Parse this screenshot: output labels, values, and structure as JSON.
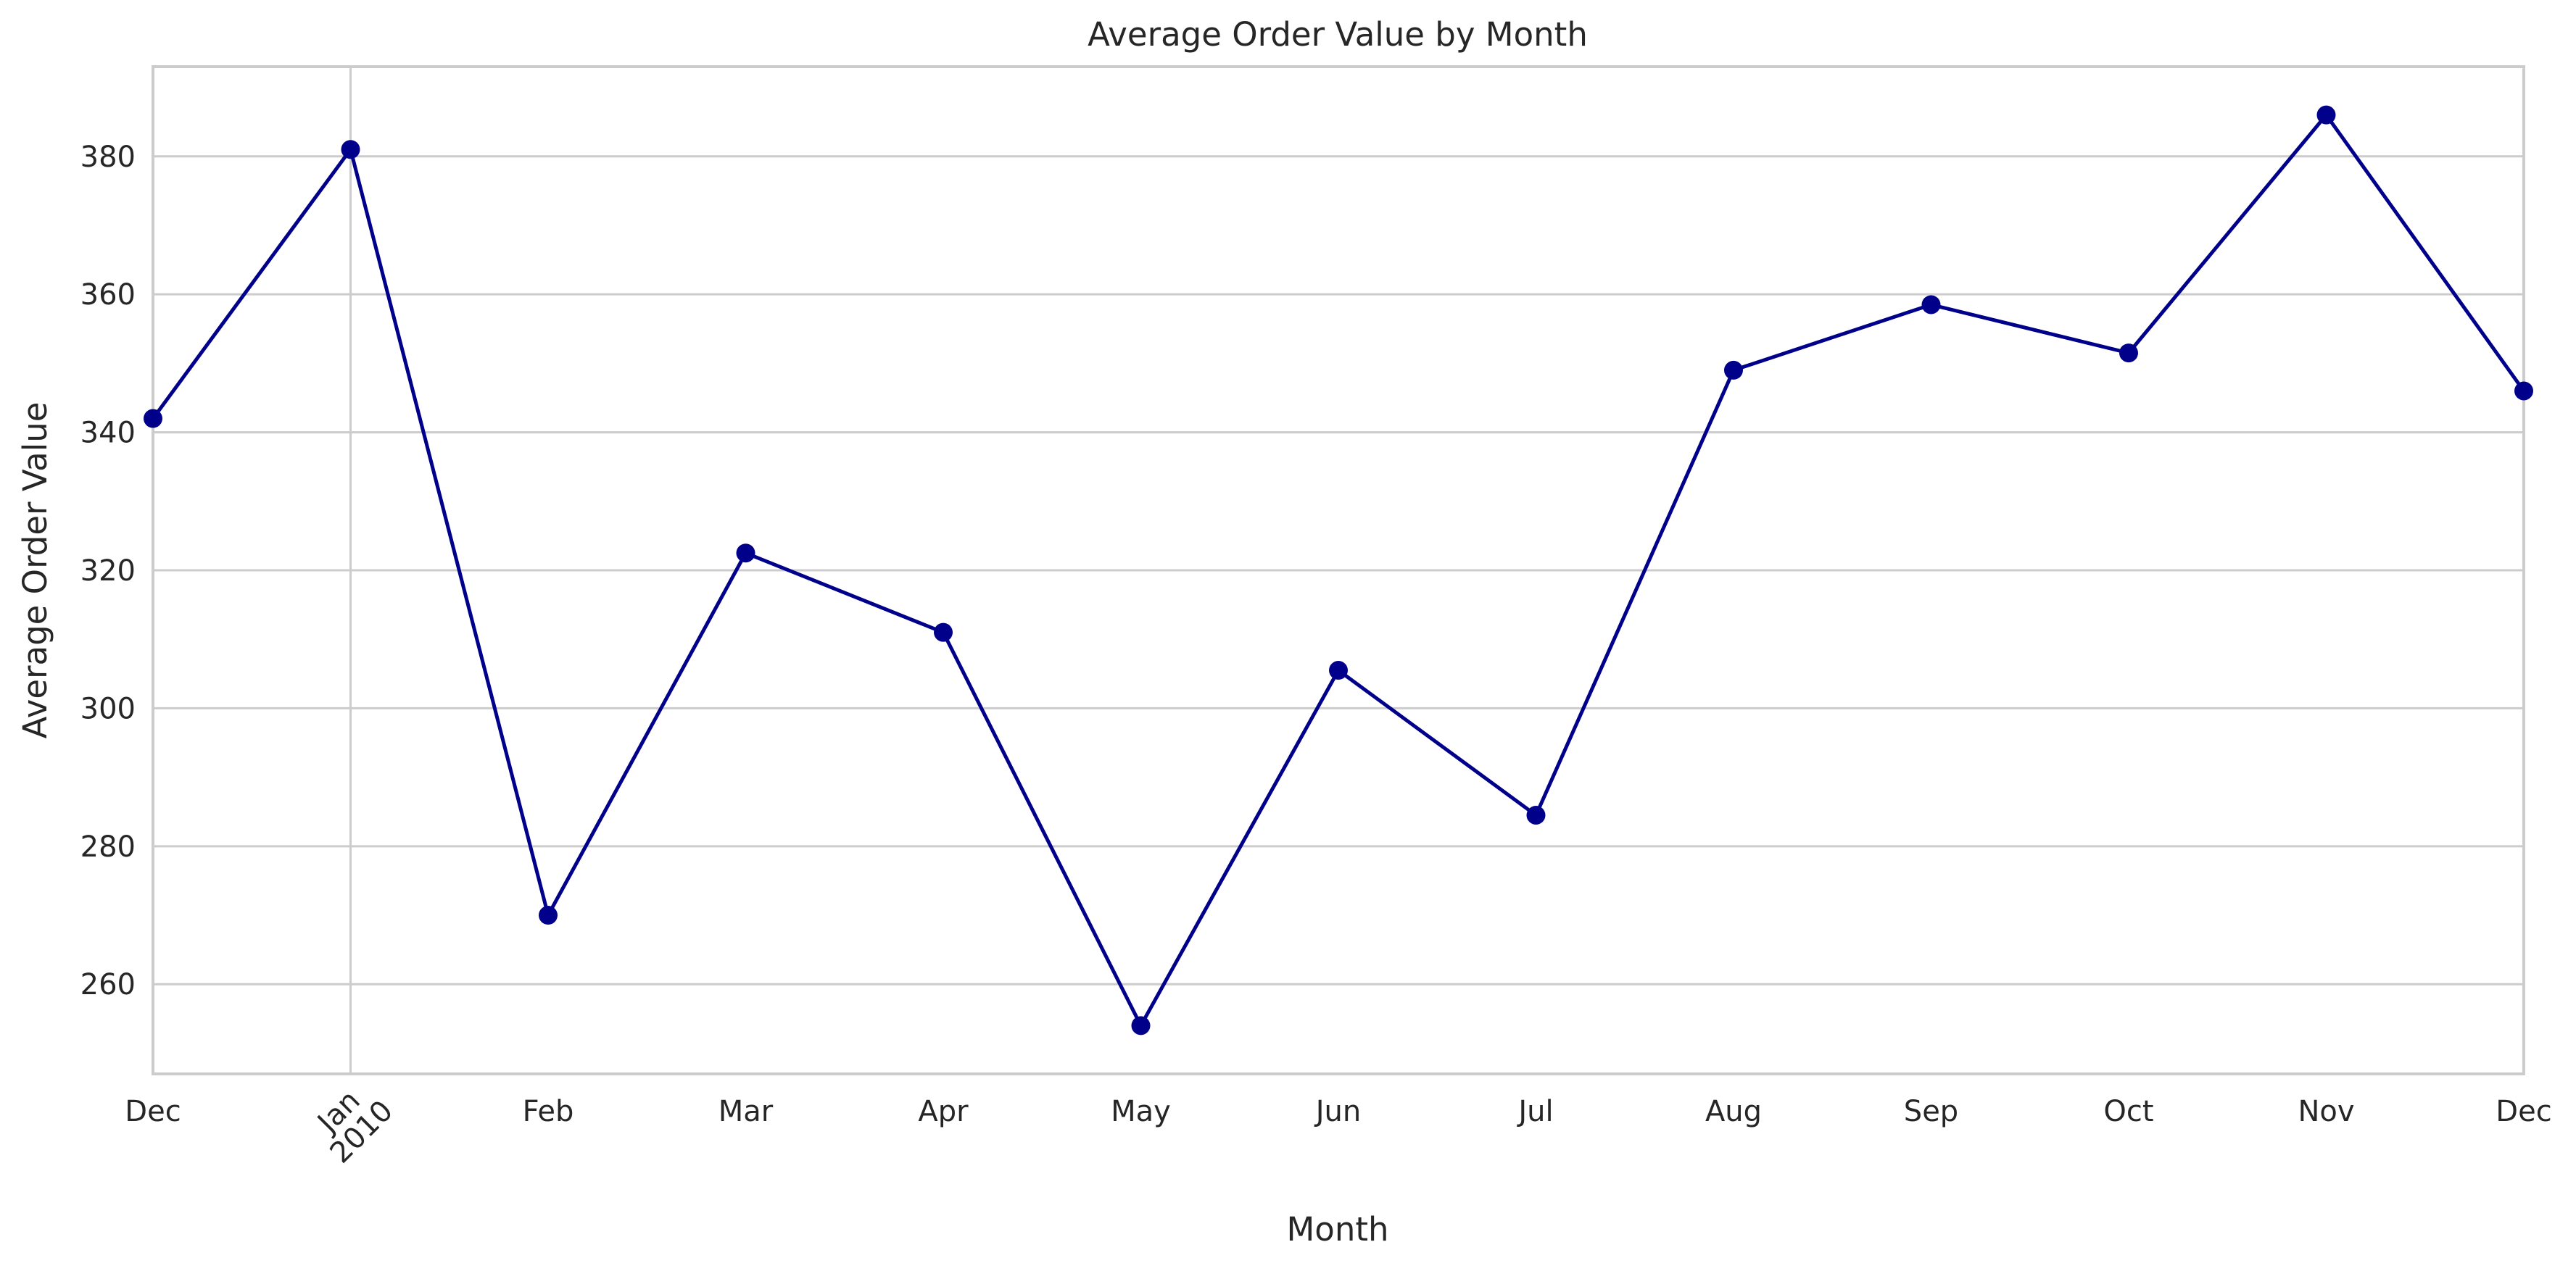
{
  "chart_data": {
    "type": "line",
    "title": "Average Order Value by Month",
    "xlabel": "Month",
    "ylabel": "Average Order Value",
    "x": [
      "2009-12",
      "2010-01",
      "2010-02",
      "2010-03",
      "2010-04",
      "2010-05",
      "2010-06",
      "2010-07",
      "2010-08",
      "2010-09",
      "2010-10",
      "2010-11",
      "2010-12"
    ],
    "x_tick_labels": [
      "Dec",
      "Jan",
      "Feb",
      "Mar",
      "Apr",
      "May",
      "Jun",
      "Jul",
      "Aug",
      "Sep",
      "Oct",
      "Nov",
      "Dec"
    ],
    "year_label": "2010",
    "series": [
      {
        "values": [
          342,
          381,
          270,
          322.5,
          311,
          254,
          305.5,
          284.5,
          349,
          358.5,
          351.5,
          386,
          346
        ]
      }
    ],
    "ylim": [
      247,
      393
    ],
    "yticks": [
      260,
      280,
      300,
      320,
      340,
      360,
      380
    ],
    "grid": true,
    "line_color": "#00008b",
    "grid_color": "#cccccc"
  }
}
